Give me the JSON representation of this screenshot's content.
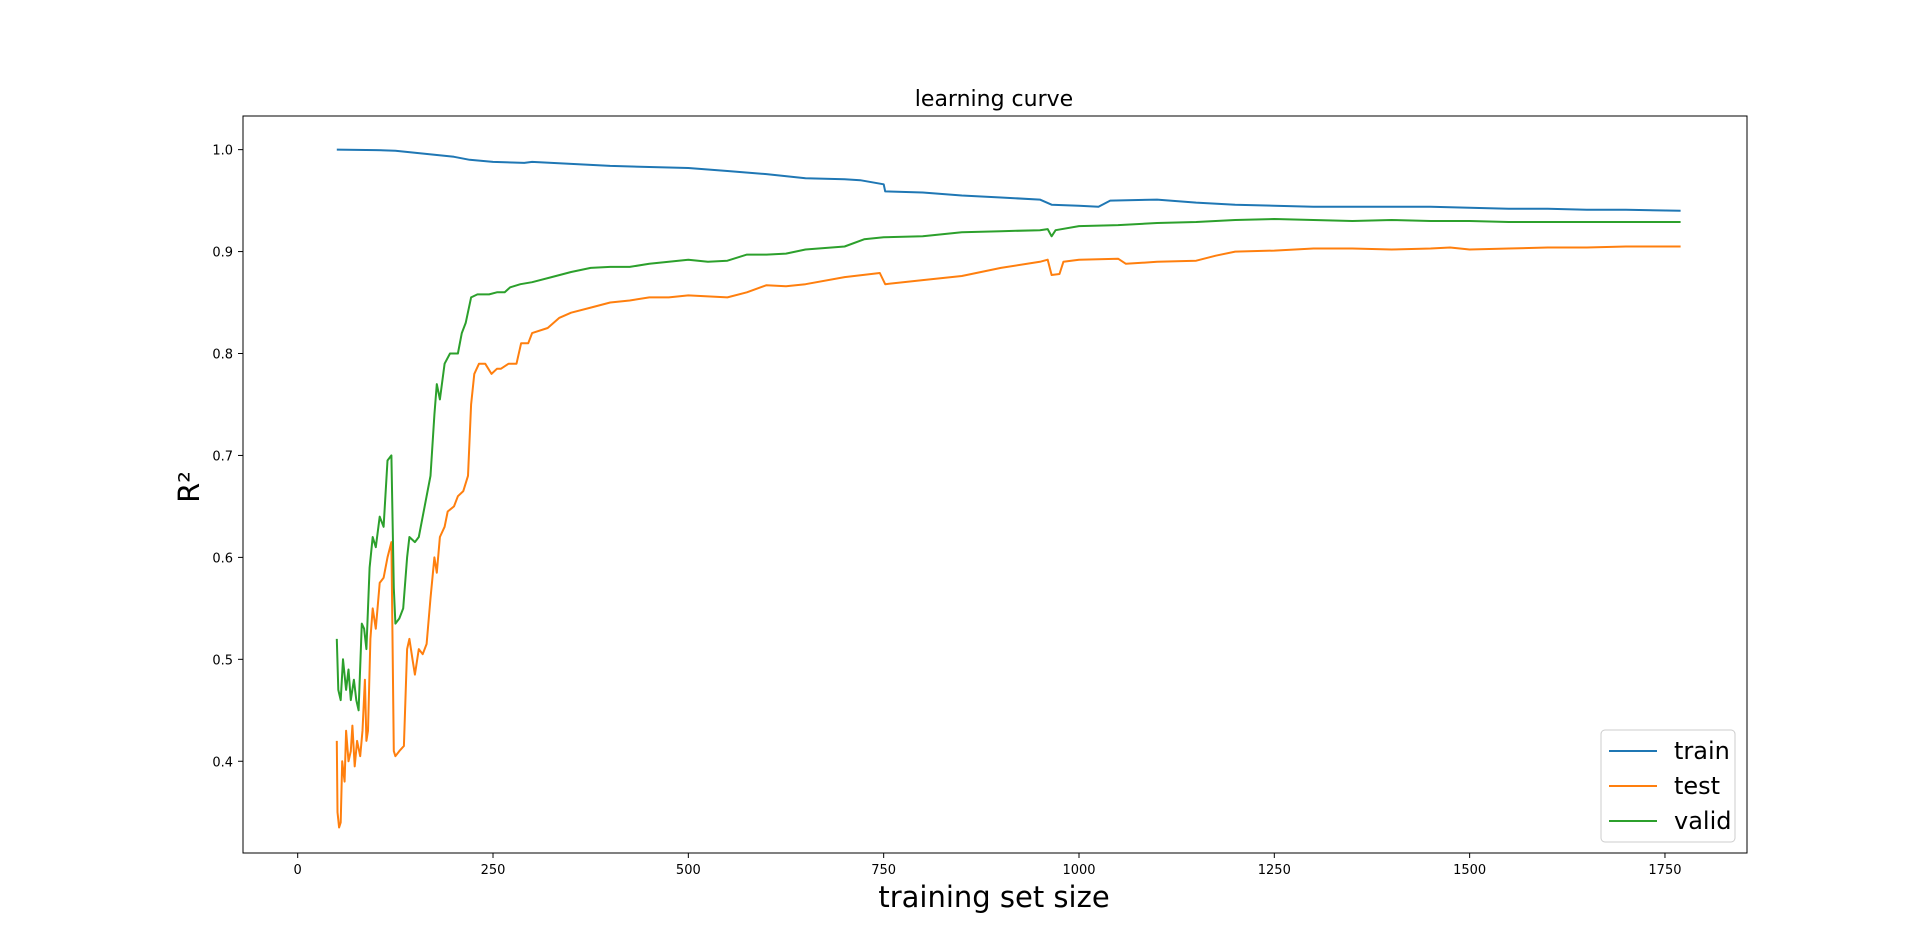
{
  "chart_data": {
    "type": "line",
    "title": "learning curve",
    "xlabel": "training set size",
    "ylabel": "R²",
    "xlim": [
      -70,
      1855
    ],
    "ylim": [
      0.31,
      1.033
    ],
    "xticks": [
      0,
      250,
      500,
      750,
      1000,
      1250,
      1500,
      1750
    ],
    "yticks": [
      0.4,
      0.5,
      0.6,
      0.7,
      0.8,
      0.9,
      1.0
    ],
    "ytick_labels": [
      "0.4",
      "0.5",
      "0.6",
      "0.7",
      "0.8",
      "0.9",
      "1.0"
    ],
    "grid": false,
    "legend": {
      "placement": "bottom-right"
    },
    "series": [
      {
        "name": "train",
        "color": "#1f77b4",
        "points": [
          [
            50,
            1.0
          ],
          [
            100,
            0.9995
          ],
          [
            125,
            0.999
          ],
          [
            150,
            0.997
          ],
          [
            175,
            0.995
          ],
          [
            200,
            0.993
          ],
          [
            220,
            0.99
          ],
          [
            250,
            0.988
          ],
          [
            290,
            0.987
          ],
          [
            300,
            0.988
          ],
          [
            350,
            0.986
          ],
          [
            400,
            0.984
          ],
          [
            450,
            0.983
          ],
          [
            500,
            0.982
          ],
          [
            550,
            0.979
          ],
          [
            600,
            0.976
          ],
          [
            650,
            0.972
          ],
          [
            700,
            0.971
          ],
          [
            720,
            0.97
          ],
          [
            750,
            0.966
          ],
          [
            752,
            0.959
          ],
          [
            800,
            0.958
          ],
          [
            850,
            0.955
          ],
          [
            900,
            0.953
          ],
          [
            950,
            0.951
          ],
          [
            965,
            0.946
          ],
          [
            1000,
            0.945
          ],
          [
            1025,
            0.944
          ],
          [
            1040,
            0.95
          ],
          [
            1100,
            0.951
          ],
          [
            1150,
            0.948
          ],
          [
            1200,
            0.946
          ],
          [
            1250,
            0.945
          ],
          [
            1300,
            0.944
          ],
          [
            1350,
            0.944
          ],
          [
            1400,
            0.944
          ],
          [
            1450,
            0.944
          ],
          [
            1500,
            0.943
          ],
          [
            1550,
            0.942
          ],
          [
            1600,
            0.942
          ],
          [
            1650,
            0.941
          ],
          [
            1700,
            0.941
          ],
          [
            1770,
            0.94
          ]
        ]
      },
      {
        "name": "test",
        "color": "#ff7f0e",
        "points": [
          [
            50,
            0.42
          ],
          [
            51,
            0.35
          ],
          [
            53,
            0.335
          ],
          [
            55,
            0.34
          ],
          [
            57,
            0.4
          ],
          [
            60,
            0.38
          ],
          [
            62,
            0.43
          ],
          [
            65,
            0.4
          ],
          [
            68,
            0.41
          ],
          [
            70,
            0.435
          ],
          [
            73,
            0.395
          ],
          [
            76,
            0.42
          ],
          [
            80,
            0.405
          ],
          [
            83,
            0.43
          ],
          [
            86,
            0.48
          ],
          [
            88,
            0.42
          ],
          [
            90,
            0.43
          ],
          [
            93,
            0.52
          ],
          [
            96,
            0.55
          ],
          [
            100,
            0.53
          ],
          [
            105,
            0.575
          ],
          [
            110,
            0.58
          ],
          [
            115,
            0.6
          ],
          [
            120,
            0.615
          ],
          [
            123,
            0.41
          ],
          [
            125,
            0.405
          ],
          [
            130,
            0.41
          ],
          [
            136,
            0.415
          ],
          [
            140,
            0.51
          ],
          [
            143,
            0.52
          ],
          [
            147,
            0.5
          ],
          [
            150,
            0.485
          ],
          [
            155,
            0.51
          ],
          [
            160,
            0.505
          ],
          [
            165,
            0.515
          ],
          [
            170,
            0.56
          ],
          [
            175,
            0.6
          ],
          [
            178,
            0.585
          ],
          [
            182,
            0.62
          ],
          [
            188,
            0.63
          ],
          [
            192,
            0.645
          ],
          [
            200,
            0.65
          ],
          [
            205,
            0.66
          ],
          [
            212,
            0.665
          ],
          [
            218,
            0.68
          ],
          [
            222,
            0.75
          ],
          [
            226,
            0.78
          ],
          [
            232,
            0.79
          ],
          [
            240,
            0.79
          ],
          [
            248,
            0.78
          ],
          [
            255,
            0.785
          ],
          [
            260,
            0.785
          ],
          [
            270,
            0.79
          ],
          [
            280,
            0.79
          ],
          [
            286,
            0.81
          ],
          [
            295,
            0.81
          ],
          [
            300,
            0.82
          ],
          [
            320,
            0.825
          ],
          [
            335,
            0.835
          ],
          [
            350,
            0.84
          ],
          [
            375,
            0.845
          ],
          [
            400,
            0.85
          ],
          [
            425,
            0.852
          ],
          [
            450,
            0.855
          ],
          [
            475,
            0.855
          ],
          [
            500,
            0.857
          ],
          [
            525,
            0.856
          ],
          [
            550,
            0.855
          ],
          [
            575,
            0.86
          ],
          [
            600,
            0.867
          ],
          [
            625,
            0.866
          ],
          [
            650,
            0.868
          ],
          [
            700,
            0.875
          ],
          [
            745,
            0.879
          ],
          [
            752,
            0.868
          ],
          [
            800,
            0.872
          ],
          [
            850,
            0.876
          ],
          [
            900,
            0.884
          ],
          [
            950,
            0.89
          ],
          [
            960,
            0.892
          ],
          [
            965,
            0.877
          ],
          [
            975,
            0.878
          ],
          [
            980,
            0.89
          ],
          [
            1000,
            0.892
          ],
          [
            1050,
            0.893
          ],
          [
            1060,
            0.888
          ],
          [
            1100,
            0.89
          ],
          [
            1150,
            0.891
          ],
          [
            1175,
            0.896
          ],
          [
            1200,
            0.9
          ],
          [
            1250,
            0.901
          ],
          [
            1300,
            0.903
          ],
          [
            1350,
            0.903
          ],
          [
            1400,
            0.902
          ],
          [
            1450,
            0.903
          ],
          [
            1475,
            0.904
          ],
          [
            1500,
            0.902
          ],
          [
            1550,
            0.903
          ],
          [
            1600,
            0.904
          ],
          [
            1650,
            0.904
          ],
          [
            1700,
            0.905
          ],
          [
            1770,
            0.905
          ]
        ]
      },
      {
        "name": "valid",
        "color": "#2ca02c",
        "points": [
          [
            50,
            0.52
          ],
          [
            52,
            0.47
          ],
          [
            55,
            0.46
          ],
          [
            58,
            0.5
          ],
          [
            62,
            0.47
          ],
          [
            65,
            0.49
          ],
          [
            68,
            0.46
          ],
          [
            72,
            0.48
          ],
          [
            75,
            0.46
          ],
          [
            78,
            0.45
          ],
          [
            82,
            0.535
          ],
          [
            85,
            0.53
          ],
          [
            88,
            0.51
          ],
          [
            92,
            0.59
          ],
          [
            96,
            0.62
          ],
          [
            100,
            0.61
          ],
          [
            105,
            0.64
          ],
          [
            110,
            0.63
          ],
          [
            115,
            0.695
          ],
          [
            120,
            0.7
          ],
          [
            123,
            0.57
          ],
          [
            125,
            0.535
          ],
          [
            130,
            0.54
          ],
          [
            135,
            0.55
          ],
          [
            140,
            0.6
          ],
          [
            143,
            0.62
          ],
          [
            150,
            0.615
          ],
          [
            155,
            0.62
          ],
          [
            160,
            0.64
          ],
          [
            165,
            0.66
          ],
          [
            170,
            0.68
          ],
          [
            175,
            0.74
          ],
          [
            178,
            0.77
          ],
          [
            182,
            0.755
          ],
          [
            188,
            0.79
          ],
          [
            195,
            0.8
          ],
          [
            205,
            0.8
          ],
          [
            210,
            0.82
          ],
          [
            215,
            0.83
          ],
          [
            222,
            0.855
          ],
          [
            230,
            0.858
          ],
          [
            245,
            0.858
          ],
          [
            255,
            0.86
          ],
          [
            265,
            0.86
          ],
          [
            272,
            0.865
          ],
          [
            285,
            0.868
          ],
          [
            300,
            0.87
          ],
          [
            325,
            0.875
          ],
          [
            350,
            0.88
          ],
          [
            375,
            0.884
          ],
          [
            400,
            0.885
          ],
          [
            425,
            0.885
          ],
          [
            450,
            0.888
          ],
          [
            475,
            0.89
          ],
          [
            500,
            0.892
          ],
          [
            525,
            0.89
          ],
          [
            550,
            0.891
          ],
          [
            575,
            0.897
          ],
          [
            600,
            0.897
          ],
          [
            625,
            0.898
          ],
          [
            650,
            0.902
          ],
          [
            700,
            0.905
          ],
          [
            725,
            0.912
          ],
          [
            750,
            0.914
          ],
          [
            800,
            0.915
          ],
          [
            850,
            0.919
          ],
          [
            900,
            0.92
          ],
          [
            950,
            0.921
          ],
          [
            960,
            0.922
          ],
          [
            965,
            0.915
          ],
          [
            970,
            0.921
          ],
          [
            1000,
            0.925
          ],
          [
            1050,
            0.926
          ],
          [
            1100,
            0.928
          ],
          [
            1150,
            0.929
          ],
          [
            1200,
            0.931
          ],
          [
            1250,
            0.932
          ],
          [
            1300,
            0.931
          ],
          [
            1350,
            0.93
          ],
          [
            1400,
            0.931
          ],
          [
            1450,
            0.93
          ],
          [
            1500,
            0.93
          ],
          [
            1550,
            0.929
          ],
          [
            1600,
            0.929
          ],
          [
            1650,
            0.929
          ],
          [
            1700,
            0.929
          ],
          [
            1770,
            0.929
          ]
        ]
      }
    ]
  }
}
